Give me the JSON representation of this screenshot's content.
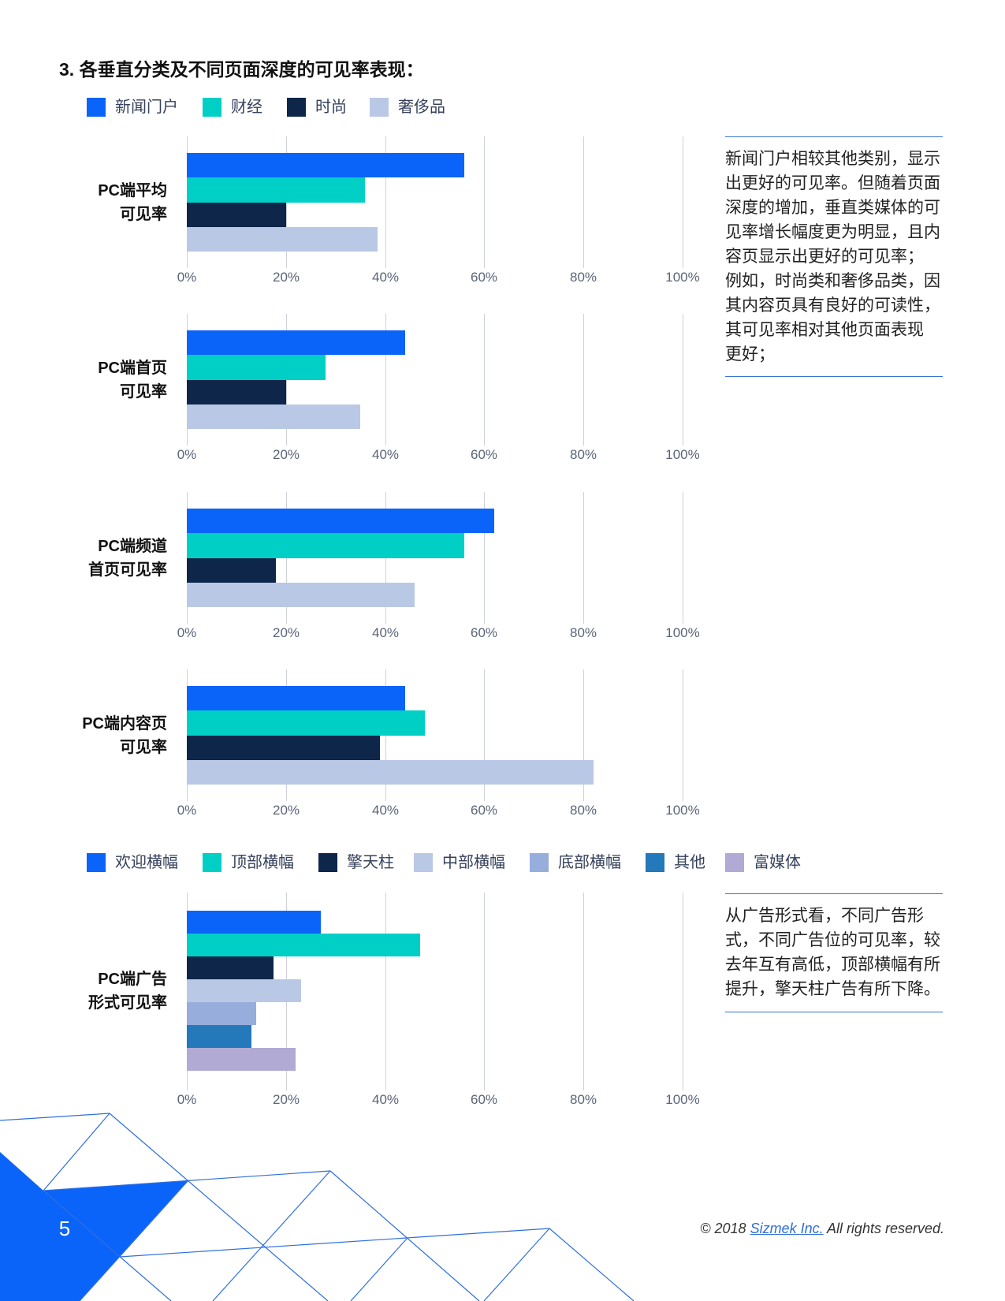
{
  "page": {
    "section_title": "3. 各垂直分类及不同页面深度的可见率表现："
  },
  "chart_data": [
    {
      "type": "bar",
      "orientation": "horizontal",
      "legend": "top-left",
      "grid": true,
      "categories": [
        [
          "PC端平均",
          "可见率"
        ],
        [
          "PC端首页",
          "可见率"
        ],
        [
          "PC端频道",
          "首页可见率"
        ],
        [
          "PC端内容页",
          "可见率"
        ]
      ],
      "series": [
        {
          "name": "新闻门户",
          "color": "#0a64f9",
          "values": [
            56,
            44,
            62,
            44
          ]
        },
        {
          "name": "财经",
          "color": "#00cfc5",
          "values": [
            36,
            28,
            56,
            48
          ]
        },
        {
          "name": "时尚",
          "color": "#0e2649",
          "values": [
            20,
            20,
            18,
            39
          ]
        },
        {
          "name": "奢侈品",
          "color": "#b9c8e4",
          "values": [
            38.5,
            35,
            46,
            82
          ]
        }
      ],
      "xlim": [
        0,
        100
      ],
      "xticks": [
        0,
        20,
        40,
        60,
        80,
        100
      ],
      "xtick_labels": [
        "0%",
        "20%",
        "40%",
        "60%",
        "80%",
        "100%"
      ]
    },
    {
      "type": "bar",
      "orientation": "horizontal",
      "legend": "top-left",
      "grid": true,
      "categories": [
        [
          "PC端广告",
          "形式可见率"
        ]
      ],
      "series": [
        {
          "name": "欢迎横幅",
          "color": "#0a64f9",
          "values": [
            27
          ]
        },
        {
          "name": "顶部横幅",
          "color": "#00cfc5",
          "values": [
            47
          ]
        },
        {
          "name": "擎天柱",
          "color": "#0e2649",
          "values": [
            17.5
          ]
        },
        {
          "name": "中部横幅",
          "color": "#b9c8e4",
          "values": [
            23
          ]
        },
        {
          "name": "底部横幅",
          "color": "#97aedc",
          "values": [
            14
          ]
        },
        {
          "name": "其他",
          "color": "#2379b9",
          "values": [
            13
          ]
        },
        {
          "name": "富媒体",
          "color": "#b1aad5",
          "values": [
            22
          ]
        }
      ],
      "xlim": [
        0,
        100
      ],
      "xticks": [
        0,
        20,
        40,
        60,
        80,
        100
      ],
      "xtick_labels": [
        "0%",
        "20%",
        "40%",
        "60%",
        "80%",
        "100%"
      ]
    }
  ],
  "notes": {
    "vertical_insight": [
      "新闻门户相较其他类别，显示",
      "出更好的可见率。但随着页面",
      "深度的增加，垂直类媒体的可",
      "见率增长幅度更为明显，且内",
      "容页显示出更好的可见率；",
      "例如，时尚类和奢侈品类，因",
      "其内容页具有良好的可读性，",
      "其可见率相对其他页面表现",
      "更好；"
    ],
    "format_insight": [
      "从广告形式看，不同广告形",
      "式，不同广告位的可见率，较",
      "去年互有高低，顶部横幅有所",
      "提升，擎天柱广告有所下降。"
    ]
  },
  "footer": {
    "page_number": "5",
    "copyright_prefix": "© 2018",
    "company": "Sizmek Inc.",
    "copyright_suffix": "All rights reserved."
  }
}
